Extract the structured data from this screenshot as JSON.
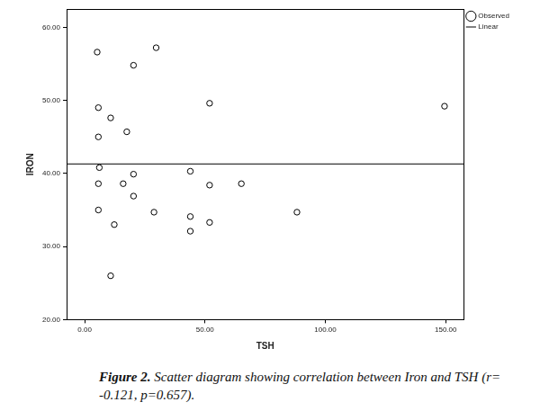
{
  "chart_data": {
    "type": "scatter",
    "x_label": "TSH",
    "y_label": "IRON",
    "series": [
      {
        "name": "Observed",
        "type": "scatter",
        "color": "#000000",
        "marker": "circle",
        "x": [
          5.2,
          29.7,
          20.3,
          5.7,
          10.8,
          17.5,
          5.7,
          51.9,
          149.5,
          6.1,
          5.7,
          20.3,
          16.0,
          43.9,
          51.9,
          65.1,
          20.3,
          5.7,
          28.8,
          12.3,
          43.9,
          51.9,
          43.9,
          88.2,
          10.8
        ],
        "values": [
          56.6,
          57.2,
          54.8,
          49.0,
          47.6,
          45.7,
          45.0,
          49.6,
          49.2,
          40.8,
          38.6,
          39.9,
          38.6,
          40.3,
          38.4,
          38.6,
          36.9,
          35.0,
          34.7,
          33.0,
          34.1,
          33.3,
          32.1,
          34.7,
          26.0
        ]
      },
      {
        "name": "Linear",
        "type": "line",
        "color": "#000000",
        "line_style": "solid",
        "x": [
          -7.5,
          157.5
        ],
        "values": [
          41.3,
          41.3
        ]
      }
    ],
    "xlim": [
      -7.5,
      157.5
    ],
    "xticks": [
      {
        "value": 0,
        "label": "0.00"
      },
      {
        "value": 50,
        "label": "50.00"
      },
      {
        "value": 100,
        "label": "100.00"
      },
      {
        "value": 150,
        "label": "150.00"
      }
    ],
    "ylim": [
      20,
      62.5
    ],
    "yticks": [
      {
        "value": 20,
        "label": "20.00"
      },
      {
        "value": 30,
        "label": "30.00"
      },
      {
        "value": 40,
        "label": "40.00"
      },
      {
        "value": 50,
        "label": "50.00"
      },
      {
        "value": 60,
        "label": "60.00"
      }
    ],
    "grid": false,
    "legend": "right"
  },
  "caption": {
    "label": "Figure 2.",
    "text": "Scatter diagram showing correlation between Iron and TSH (r= -0.121, p=0.657)."
  }
}
